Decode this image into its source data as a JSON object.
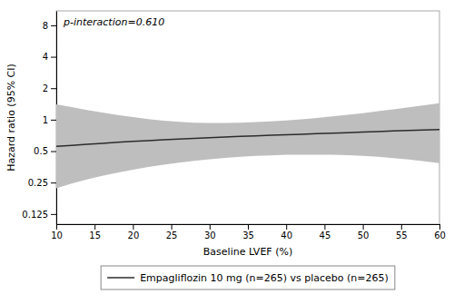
{
  "chart_data": {
    "type": "line",
    "xlabel": "Baseline LVEF (%)",
    "ylabel": "Hazard ratio (95% CI)",
    "annotation": "p-interaction=0.610",
    "x": [
      10,
      12,
      14,
      16,
      18,
      20,
      22,
      24,
      26,
      28,
      30,
      32,
      34,
      36,
      38,
      40,
      42,
      44,
      46,
      48,
      50,
      52,
      54,
      56,
      58,
      60
    ],
    "series": [
      {
        "name": "Empagliflozin 10 mg (n=265) vs placebo (n=265)",
        "color": "#2c2c2c",
        "values": [
          0.555,
          0.568,
          0.581,
          0.594,
          0.607,
          0.619,
          0.631,
          0.642,
          0.653,
          0.663,
          0.673,
          0.682,
          0.691,
          0.7,
          0.709,
          0.717,
          0.726,
          0.735,
          0.744,
          0.752,
          0.761,
          0.77,
          0.779,
          0.788,
          0.797,
          0.806
        ],
        "ci": {
          "lower": [
            0.22,
            0.245,
            0.268,
            0.29,
            0.311,
            0.332,
            0.352,
            0.371,
            0.388,
            0.404,
            0.418,
            0.431,
            0.441,
            0.45,
            0.456,
            0.461,
            0.463,
            0.463,
            0.461,
            0.457,
            0.45,
            0.441,
            0.429,
            0.415,
            0.4,
            0.383
          ],
          "upper": [
            1.4,
            1.32,
            1.24,
            1.17,
            1.11,
            1.06,
            1.015,
            0.978,
            0.952,
            0.937,
            0.93,
            0.93,
            0.936,
            0.947,
            0.963,
            0.982,
            1.008,
            1.038,
            1.073,
            1.112,
            1.155,
            1.204,
            1.256,
            1.312,
            1.372,
            1.435
          ],
          "color": "#bebebe"
        }
      }
    ],
    "xlim": [
      10,
      60
    ],
    "xticks": [
      10,
      15,
      20,
      25,
      30,
      35,
      40,
      45,
      50,
      55,
      60
    ],
    "ylim": [
      0.1,
      11.0
    ],
    "yticks": [
      0.125,
      0.25,
      0.5,
      1,
      2,
      4,
      8
    ],
    "log": "y",
    "grid": false,
    "legend": "bottom"
  }
}
